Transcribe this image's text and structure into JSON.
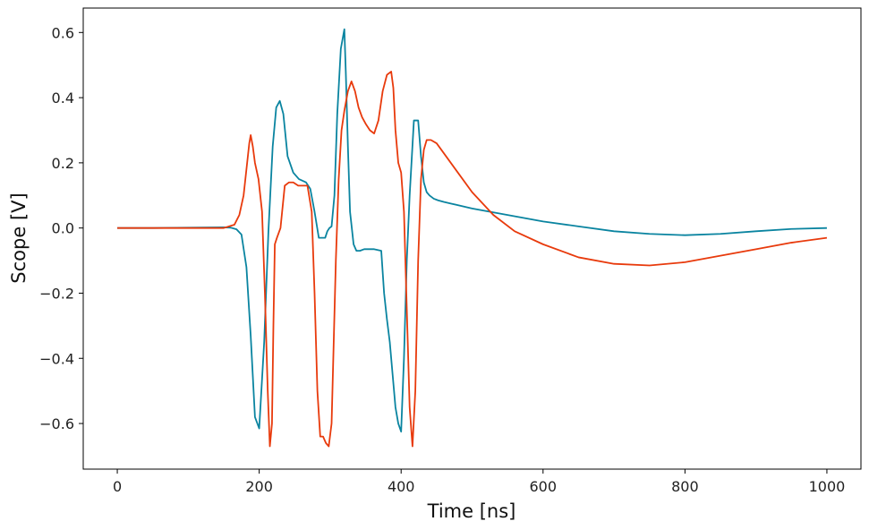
{
  "chart_data": {
    "type": "line",
    "title": "",
    "xlabel": "Time [ns]",
    "ylabel": "Scope [V]",
    "xlim": [
      -48,
      1048
    ],
    "ylim": [
      -0.74,
      0.675
    ],
    "xticks": [
      0,
      200,
      400,
      600,
      800,
      1000
    ],
    "yticks": [
      -0.6,
      -0.4,
      -0.2,
      0.0,
      0.2,
      0.4,
      0.6
    ],
    "xtick_labels": [
      "0",
      "200",
      "400",
      "600",
      "800",
      "1000"
    ],
    "ytick_labels": [
      "−0.6",
      "−0.4",
      "−0.2",
      "0.0",
      "0.2",
      "0.4",
      "0.6"
    ],
    "grid": false,
    "legend": "none",
    "series": [
      {
        "color": "#0a84a0",
        "x": [
          0,
          50,
          100,
          150,
          160,
          168,
          175,
          182,
          188,
          194,
          200,
          207,
          213,
          219,
          224,
          229,
          234,
          240,
          248,
          256,
          266,
          272,
          278,
          284,
          290,
          293,
          296,
          299,
          302,
          306,
          310,
          315,
          320,
          322,
          325,
          328,
          333,
          337,
          342,
          348,
          354,
          362,
          372,
          376,
          380,
          384,
          388,
          392,
          396,
          400,
          404,
          408,
          412,
          418,
          424,
          428,
          432,
          436,
          440,
          446,
          452,
          460,
          470,
          500,
          550,
          600,
          650,
          700,
          750,
          800,
          850,
          900,
          950,
          1000
        ],
        "y": [
          0.0,
          0.0,
          0.001,
          0.002,
          0.001,
          -0.004,
          -0.02,
          -0.12,
          -0.33,
          -0.58,
          -0.615,
          -0.35,
          -0.01,
          0.25,
          0.37,
          0.39,
          0.35,
          0.22,
          0.17,
          0.15,
          0.14,
          0.12,
          0.05,
          -0.03,
          -0.03,
          -0.03,
          -0.01,
          0.0,
          0.005,
          0.1,
          0.35,
          0.55,
          0.61,
          0.48,
          0.25,
          0.05,
          -0.05,
          -0.07,
          -0.07,
          -0.065,
          -0.065,
          -0.065,
          -0.07,
          -0.2,
          -0.28,
          -0.35,
          -0.45,
          -0.55,
          -0.6,
          -0.625,
          -0.4,
          -0.1,
          0.1,
          0.33,
          0.33,
          0.22,
          0.14,
          0.11,
          0.1,
          0.09,
          0.085,
          0.08,
          0.075,
          0.06,
          0.04,
          0.02,
          0.005,
          -0.01,
          -0.018,
          -0.022,
          -0.018,
          -0.01,
          -0.003,
          0.0
        ]
      },
      {
        "color": "#e83a0c",
        "x": [
          0,
          50,
          100,
          150,
          165,
          172,
          178,
          182,
          186,
          188,
          191,
          194,
          199,
          204,
          208,
          212,
          215,
          218,
          220,
          222,
          225,
          230,
          236,
          242,
          248,
          255,
          262,
          268,
          274,
          278,
          282,
          286,
          290,
          294,
          298,
          302,
          305,
          308,
          312,
          316,
          320,
          325,
          330,
          335,
          340,
          345,
          350,
          356,
          362,
          368,
          374,
          380,
          386,
          389,
          392,
          396,
          400,
          404,
          408,
          412,
          416,
          420,
          424,
          428,
          432,
          436,
          442,
          450,
          460,
          480,
          500,
          530,
          560,
          600,
          650,
          700,
          750,
          800,
          850,
          900,
          950,
          1000
        ],
        "y": [
          0.0,
          0.0,
          0.0,
          0.0,
          0.01,
          0.04,
          0.1,
          0.18,
          0.26,
          0.285,
          0.25,
          0.2,
          0.15,
          0.05,
          -0.2,
          -0.5,
          -0.67,
          -0.6,
          -0.3,
          -0.05,
          -0.03,
          0.0,
          0.13,
          0.14,
          0.14,
          0.13,
          0.13,
          0.13,
          0.05,
          -0.2,
          -0.5,
          -0.64,
          -0.64,
          -0.66,
          -0.67,
          -0.6,
          -0.35,
          -0.1,
          0.15,
          0.3,
          0.36,
          0.42,
          0.45,
          0.42,
          0.37,
          0.34,
          0.32,
          0.3,
          0.29,
          0.33,
          0.42,
          0.47,
          0.48,
          0.43,
          0.3,
          0.2,
          0.17,
          0.05,
          -0.25,
          -0.55,
          -0.67,
          -0.5,
          -0.1,
          0.15,
          0.24,
          0.27,
          0.27,
          0.26,
          0.23,
          0.17,
          0.11,
          0.04,
          -0.01,
          -0.05,
          -0.09,
          -0.11,
          -0.115,
          -0.105,
          -0.085,
          -0.065,
          -0.045,
          -0.03
        ]
      }
    ]
  }
}
